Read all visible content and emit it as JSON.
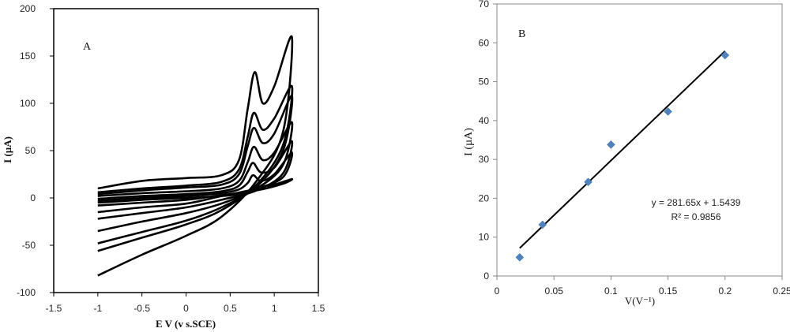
{
  "chart_data": [
    {
      "type": "line",
      "panel_label": "A",
      "xlabel": "E V (v s.SCE)",
      "ylabel": "I (µA)",
      "xlim": [
        -1.5,
        1.5
      ],
      "ylim": [
        -100,
        200
      ],
      "xticks": [
        "-1.5",
        "-1",
        "-0.5",
        "0",
        "0.5",
        "1",
        "1.5"
      ],
      "yticks": [
        "-100",
        "-50",
        "0",
        "50",
        "100",
        "150",
        "200"
      ],
      "grid": false,
      "series": [
        {
          "forward": [
            [
              -1.0,
              -5
            ],
            [
              -0.5,
              -2
            ],
            [
              0.0,
              0
            ],
            [
              0.4,
              2
            ],
            [
              0.6,
              4
            ],
            [
              0.7,
              7
            ],
            [
              0.76,
              11
            ],
            [
              0.85,
              12
            ],
            [
              1.0,
              14
            ],
            [
              1.2,
              20
            ]
          ],
          "reverse": [
            [
              1.2,
              20
            ],
            [
              1.1,
              15
            ],
            [
              0.8,
              8
            ],
            [
              0.4,
              3
            ],
            [
              0.0,
              -2
            ],
            [
              -0.5,
              -5
            ],
            [
              -1.0,
              -8
            ]
          ]
        },
        {
          "forward": [
            [
              -1.0,
              -3
            ],
            [
              -0.5,
              0
            ],
            [
              0.0,
              2
            ],
            [
              0.4,
              5
            ],
            [
              0.6,
              9
            ],
            [
              0.7,
              16
            ],
            [
              0.76,
              24
            ],
            [
              0.85,
              18
            ],
            [
              1.0,
              25
            ],
            [
              1.2,
              48
            ]
          ],
          "reverse": [
            [
              1.2,
              48
            ],
            [
              1.1,
              22
            ],
            [
              0.8,
              10
            ],
            [
              0.4,
              2
            ],
            [
              0.0,
              -6
            ],
            [
              -0.5,
              -10
            ],
            [
              -1.0,
              -15
            ]
          ]
        },
        {
          "forward": [
            [
              -1.0,
              -1
            ],
            [
              -0.5,
              2
            ],
            [
              0.0,
              4
            ],
            [
              0.4,
              7
            ],
            [
              0.6,
              13
            ],
            [
              0.7,
              28
            ],
            [
              0.76,
              37
            ],
            [
              0.85,
              27
            ],
            [
              1.0,
              32
            ],
            [
              1.2,
              60
            ]
          ],
          "reverse": [
            [
              1.2,
              60
            ],
            [
              1.1,
              26
            ],
            [
              0.8,
              8
            ],
            [
              0.4,
              -2
            ],
            [
              0.0,
              -10
            ],
            [
              -0.5,
              -16
            ],
            [
              -1.0,
              -22
            ]
          ]
        },
        {
          "forward": [
            [
              -1.0,
              2
            ],
            [
              -0.5,
              5
            ],
            [
              0.0,
              7
            ],
            [
              0.4,
              10
            ],
            [
              0.6,
              18
            ],
            [
              0.7,
              38
            ],
            [
              0.77,
              54
            ],
            [
              0.87,
              40
            ],
            [
              1.0,
              48
            ],
            [
              1.2,
              80
            ]
          ],
          "reverse": [
            [
              1.2,
              80
            ],
            [
              1.1,
              35
            ],
            [
              0.8,
              10
            ],
            [
              0.4,
              -6
            ],
            [
              0.0,
              -16
            ],
            [
              -0.5,
              -25
            ],
            [
              -1.0,
              -35
            ]
          ]
        },
        {
          "forward": [
            [
              -1.0,
              4
            ],
            [
              -0.5,
              8
            ],
            [
              0.0,
              11
            ],
            [
              0.4,
              14
            ],
            [
              0.6,
              25
            ],
            [
              0.7,
              55
            ],
            [
              0.77,
              74
            ],
            [
              0.87,
              58
            ],
            [
              1.0,
              68
            ],
            [
              1.2,
              108
            ]
          ],
          "reverse": [
            [
              1.2,
              108
            ],
            [
              1.1,
              50
            ],
            [
              0.8,
              12
            ],
            [
              0.4,
              -10
            ],
            [
              0.0,
              -24
            ],
            [
              -0.5,
              -36
            ],
            [
              -1.0,
              -48
            ]
          ]
        },
        {
          "forward": [
            [
              -1.0,
              6
            ],
            [
              -0.5,
              10
            ],
            [
              0.0,
              13
            ],
            [
              0.4,
              17
            ],
            [
              0.6,
              30
            ],
            [
              0.7,
              65
            ],
            [
              0.77,
              90
            ],
            [
              0.87,
              72
            ],
            [
              1.0,
              84
            ],
            [
              1.2,
              118
            ]
          ],
          "reverse": [
            [
              1.2,
              118
            ],
            [
              1.1,
              56
            ],
            [
              0.8,
              14
            ],
            [
              0.4,
              -13
            ],
            [
              0.0,
              -28
            ],
            [
              -0.5,
              -42
            ],
            [
              -1.0,
              -56
            ]
          ]
        },
        {
          "forward": [
            [
              -1.0,
              10
            ],
            [
              -0.5,
              18
            ],
            [
              0.0,
              21
            ],
            [
              0.4,
              24
            ],
            [
              0.6,
              40
            ],
            [
              0.7,
              95
            ],
            [
              0.78,
              133
            ],
            [
              0.87,
              100
            ],
            [
              1.0,
              118
            ],
            [
              1.2,
              170
            ]
          ],
          "reverse": [
            [
              1.2,
              170
            ],
            [
              1.1,
              70
            ],
            [
              0.8,
              18
            ],
            [
              0.4,
              -20
            ],
            [
              0.0,
              -40
            ],
            [
              -0.5,
              -60
            ],
            [
              -1.0,
              -82
            ]
          ]
        }
      ]
    },
    {
      "type": "scatter",
      "panel_label": "B",
      "xlabel": "V(V⁻¹)",
      "ylabel": "I (µA)",
      "xlim": [
        0,
        0.25
      ],
      "ylim": [
        0,
        70
      ],
      "xticks": [
        "0",
        "0.05",
        "0.1",
        "0.15",
        "0.2",
        "0.25"
      ],
      "yticks": [
        "0",
        "10",
        "20",
        "30",
        "40",
        "50",
        "60",
        "70"
      ],
      "grid": false,
      "x": [
        0.02,
        0.04,
        0.08,
        0.1,
        0.15,
        0.2
      ],
      "y": [
        4.8,
        13.2,
        24.2,
        33.8,
        42.3,
        56.8
      ],
      "marker_color": "#4f81bd",
      "trendline": {
        "slope": 281.65,
        "intercept": 1.5439,
        "x_range": [
          0.02,
          0.2
        ]
      },
      "equation": "y = 281.65x + 1.5439",
      "r_squared": "R² = 0.9856"
    }
  ]
}
